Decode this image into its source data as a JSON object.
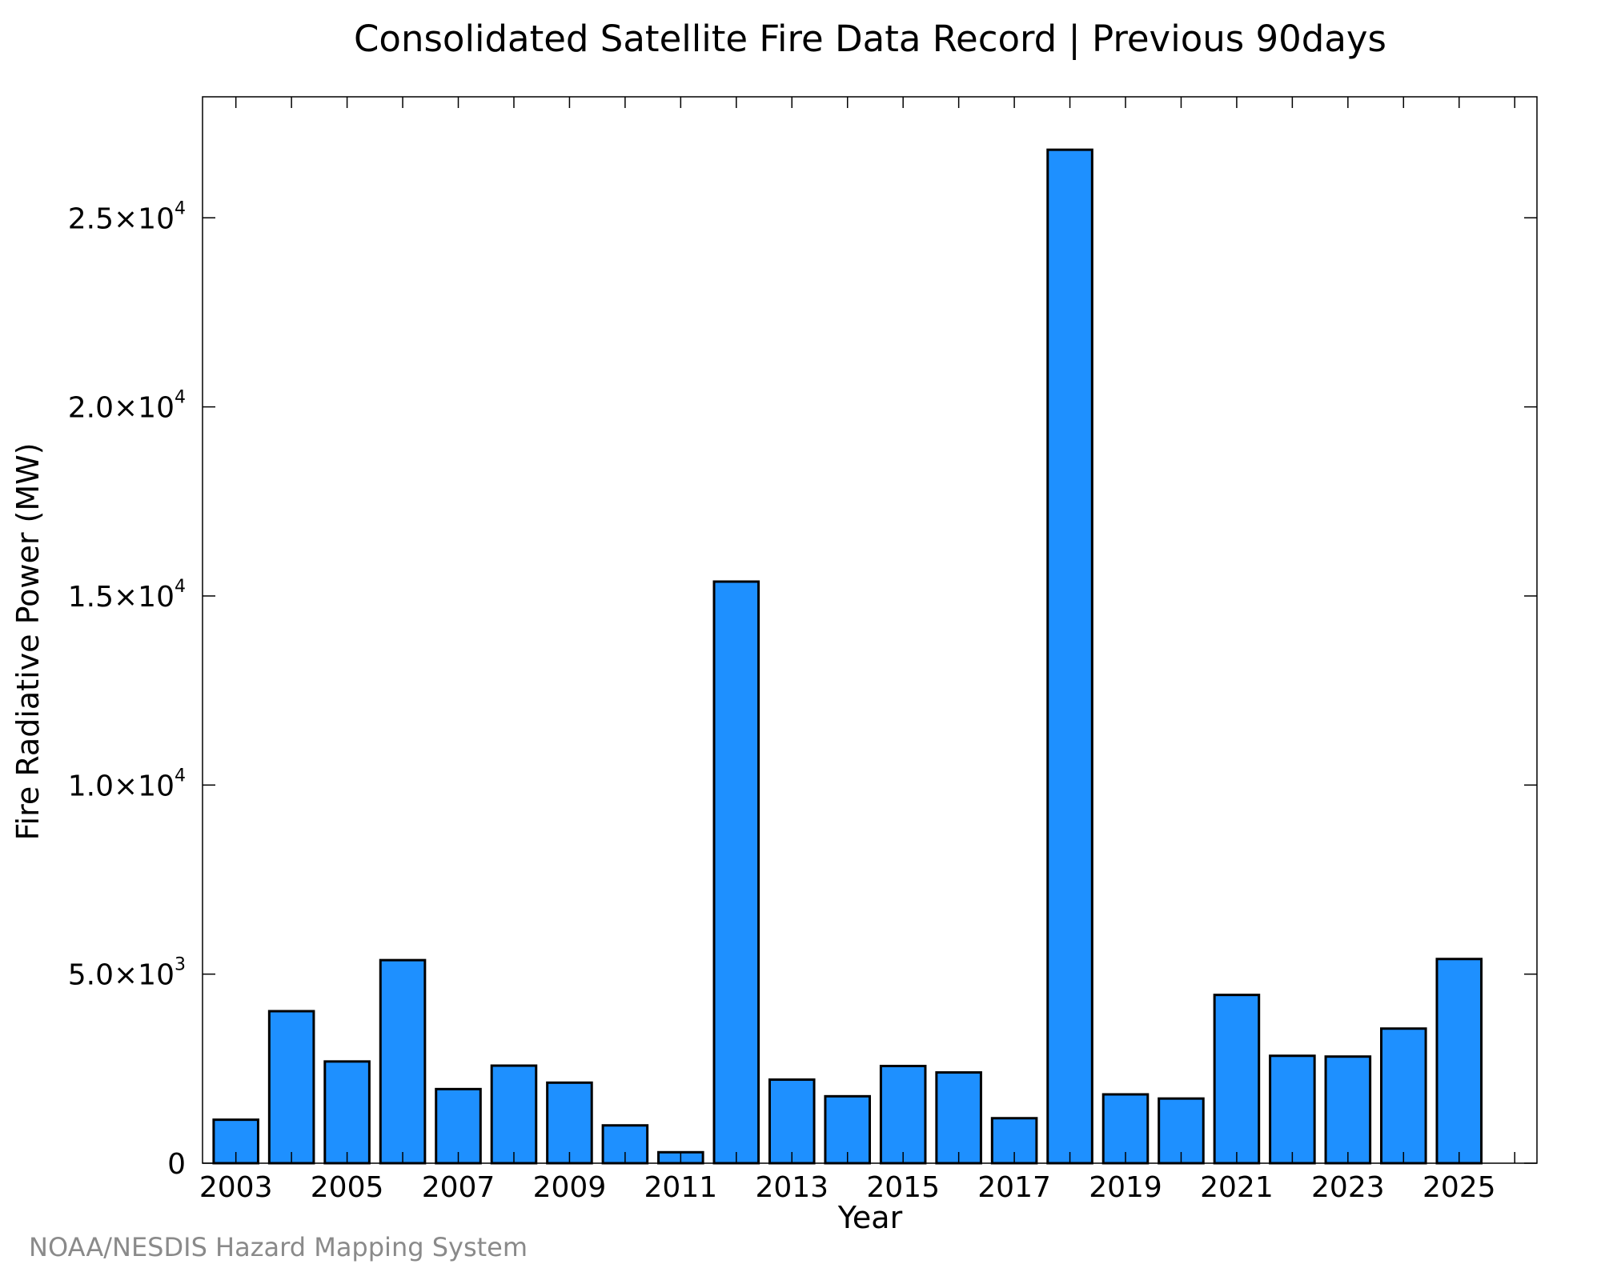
{
  "chart_data": {
    "type": "bar",
    "title": "Consolidated Satellite Fire Data Record | Previous 90days",
    "xlabel": "Year",
    "ylabel": "Fire Radiative Power (MW)",
    "categories": [
      "2003",
      "2004",
      "2005",
      "2006",
      "2007",
      "2008",
      "2009",
      "2010",
      "2011",
      "2012",
      "2013",
      "2014",
      "2015",
      "2016",
      "2017",
      "2018",
      "2019",
      "2020",
      "2021",
      "2022",
      "2023",
      "2024",
      "2025"
    ],
    "values": [
      1150,
      4020,
      2690,
      5370,
      1960,
      2580,
      2130,
      1000,
      290,
      15380,
      2210,
      1770,
      2570,
      2400,
      1190,
      26800,
      1820,
      1710,
      4450,
      2840,
      2820,
      3560,
      5400
    ],
    "x_tick_labels": [
      "2003",
      "2005",
      "2007",
      "2009",
      "2011",
      "2013",
      "2015",
      "2017",
      "2019",
      "2021",
      "2023",
      "2025"
    ],
    "y_ticks": [
      {
        "value": 0,
        "mantissa": "0",
        "exponent": ""
      },
      {
        "value": 5000,
        "mantissa": "5.0×10",
        "exponent": "3"
      },
      {
        "value": 10000,
        "mantissa": "1.0×10",
        "exponent": "4"
      },
      {
        "value": 15000,
        "mantissa": "1.5×10",
        "exponent": "4"
      },
      {
        "value": 20000,
        "mantissa": "2.0×10",
        "exponent": "4"
      },
      {
        "value": 25000,
        "mantissa": "2.5×10",
        "exponent": "4"
      }
    ],
    "ylim": [
      0,
      28200
    ],
    "xlim": [
      2002.4,
      2026.4
    ],
    "grid": false,
    "legend": "none",
    "bar_color": "#1e90ff",
    "bar_edge_color": "#000000"
  },
  "footer": {
    "credit": "NOAA/NESDIS Hazard Mapping System"
  }
}
